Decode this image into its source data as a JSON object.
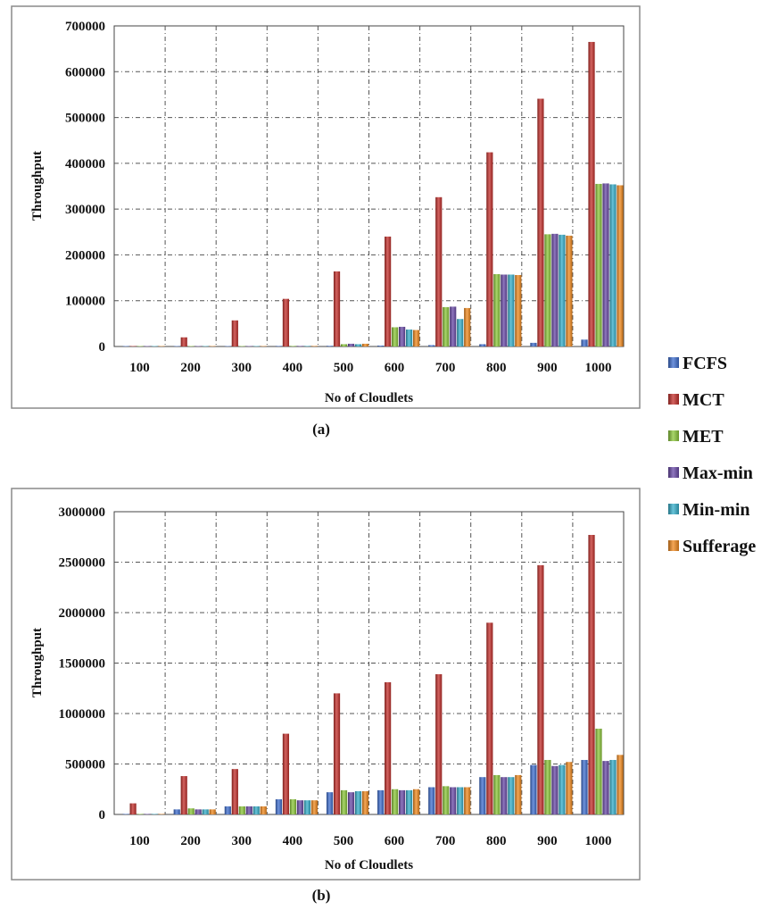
{
  "legend": {
    "items": [
      "FCFS",
      "MCT",
      "MET",
      "Max-min",
      "Min-min",
      "Sufferage"
    ],
    "colors": [
      "#3f6fd0",
      "#c42f2b",
      "#8cc83a",
      "#6a4aa8",
      "#36b0cc",
      "#f28a1e"
    ]
  },
  "chart_data": [
    {
      "type": "bar",
      "caption": "(a)",
      "xlabel": "No of Cloudlets",
      "ylabel": "Throughput",
      "categories": [
        "100",
        "200",
        "300",
        "400",
        "500",
        "600",
        "700",
        "800",
        "900",
        "1000"
      ],
      "ylim": [
        0,
        700000
      ],
      "yticks": [
        "0",
        "100000",
        "200000",
        "300000",
        "400000",
        "500000",
        "600000",
        "700000"
      ],
      "grid": true,
      "legend_position": "right",
      "series": [
        {
          "name": "FCFS",
          "values": [
            300,
            600,
            900,
            1200,
            1500,
            2000,
            3000,
            5000,
            8000,
            15000
          ]
        },
        {
          "name": "MCT",
          "values": [
            1000,
            20000,
            57000,
            104000,
            164000,
            240000,
            326000,
            424000,
            541000,
            665000
          ]
        },
        {
          "name": "MET",
          "values": [
            200,
            500,
            800,
            1200,
            5000,
            42000,
            86000,
            158000,
            245000,
            355000
          ]
        },
        {
          "name": "Max-min",
          "values": [
            200,
            500,
            800,
            1200,
            6000,
            43000,
            87000,
            157000,
            246000,
            356000
          ]
        },
        {
          "name": "Min-min",
          "values": [
            200,
            500,
            800,
            1200,
            5000,
            37000,
            60000,
            157000,
            244000,
            354000
          ]
        },
        {
          "name": "Sufferage",
          "values": [
            200,
            500,
            800,
            1200,
            6000,
            36000,
            84000,
            156000,
            242000,
            352000
          ]
        }
      ]
    },
    {
      "type": "bar",
      "caption": "(b)",
      "xlabel": "No of Cloudlets",
      "ylabel": "Throughput",
      "categories": [
        "100",
        "200",
        "300",
        "400",
        "500",
        "600",
        "700",
        "800",
        "900",
        "1000"
      ],
      "ylim": [
        0,
        3000000
      ],
      "yticks": [
        "0",
        "500000",
        "1000000",
        "1500000",
        "2000000",
        "2500000",
        "3000000"
      ],
      "grid": true,
      "legend_position": "right",
      "series": [
        {
          "name": "FCFS",
          "values": [
            5000,
            50000,
            80000,
            150000,
            220000,
            240000,
            270000,
            370000,
            490000,
            540000
          ]
        },
        {
          "name": "MCT",
          "values": [
            110000,
            380000,
            450000,
            800000,
            1200000,
            1310000,
            1390000,
            1900000,
            2470000,
            2770000
          ]
        },
        {
          "name": "MET",
          "values": [
            5000,
            60000,
            80000,
            150000,
            240000,
            250000,
            280000,
            390000,
            540000,
            850000
          ]
        },
        {
          "name": "Max-min",
          "values": [
            5000,
            50000,
            80000,
            140000,
            220000,
            240000,
            270000,
            370000,
            480000,
            530000
          ]
        },
        {
          "name": "Min-min",
          "values": [
            5000,
            50000,
            80000,
            140000,
            230000,
            240000,
            270000,
            370000,
            490000,
            540000
          ]
        },
        {
          "name": "Sufferage",
          "values": [
            5000,
            50000,
            80000,
            140000,
            230000,
            250000,
            270000,
            390000,
            520000,
            590000
          ]
        }
      ]
    }
  ]
}
